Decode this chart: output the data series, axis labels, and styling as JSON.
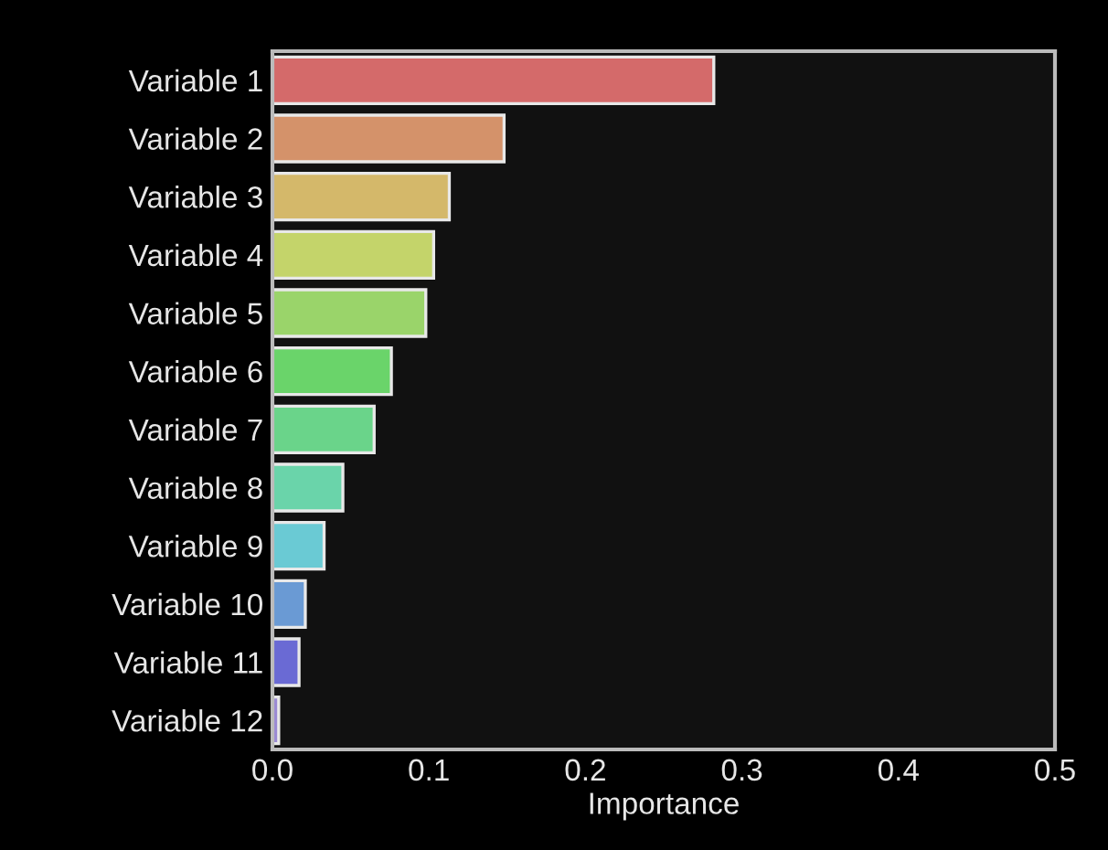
{
  "chart_data": {
    "type": "bar",
    "orientation": "horizontal",
    "xlabel": "Importance",
    "categories": [
      "Variable 1",
      "Variable 2",
      "Variable 3",
      "Variable 4",
      "Variable 5",
      "Variable 6",
      "Variable 7",
      "Variable 8",
      "Variable 9",
      "Variable 10",
      "Variable 11",
      "Variable 12"
    ],
    "values": [
      0.282,
      0.148,
      0.113,
      0.103,
      0.098,
      0.076,
      0.065,
      0.045,
      0.033,
      0.021,
      0.017,
      0.004
    ],
    "colors": [
      "#d46a6a",
      "#d4926a",
      "#d4b86a",
      "#c4d46a",
      "#9ad46a",
      "#6ad46a",
      "#6ad48a",
      "#6ad4aa",
      "#6acad4",
      "#6a9ad4",
      "#6a6ad4",
      "#9a8ad4"
    ],
    "xlim": [
      0,
      0.5
    ],
    "xticks": [
      {
        "value": 0,
        "label": "0.0"
      },
      0.1,
      0.2,
      0.3,
      0.4,
      0.5
    ],
    "grid": false
  }
}
